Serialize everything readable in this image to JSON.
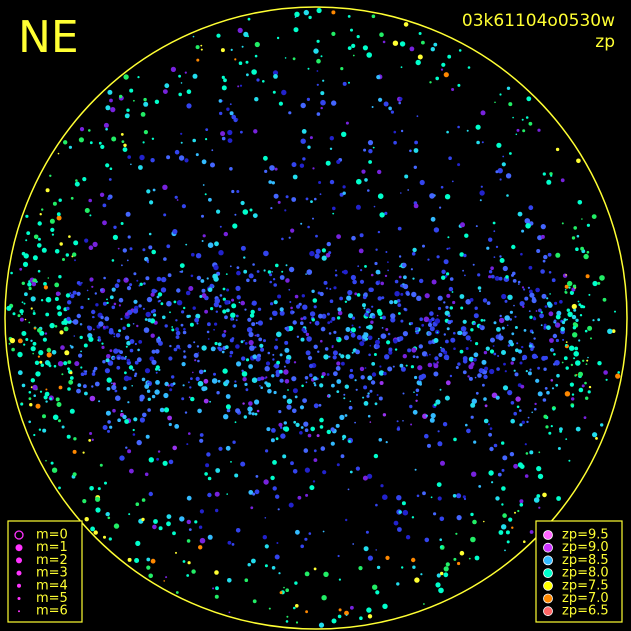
{
  "header": {
    "direction": "NE",
    "frame_id": "03k61104o0530w",
    "quantity": "zp"
  },
  "mag_legend": {
    "items": [
      "m=0",
      "m=1",
      "m=2",
      "m=3",
      "m=4",
      "m=5",
      "m=6"
    ],
    "color": "#ff33ff"
  },
  "zp_legend": {
    "items": [
      {
        "label": "zp=9.5",
        "color": "#ff66ff"
      },
      {
        "label": "zp=9.0",
        "color": "#cc33ff"
      },
      {
        "label": "zp=8.5",
        "color": "#33bbff"
      },
      {
        "label": "zp=8.0",
        "color": "#00ffcc"
      },
      {
        "label": "zp=7.5",
        "color": "#ffff00"
      },
      {
        "label": "zp=7.0",
        "color": "#ff8800"
      },
      {
        "label": "zp=6.5",
        "color": "#ff6666"
      }
    ]
  }
}
